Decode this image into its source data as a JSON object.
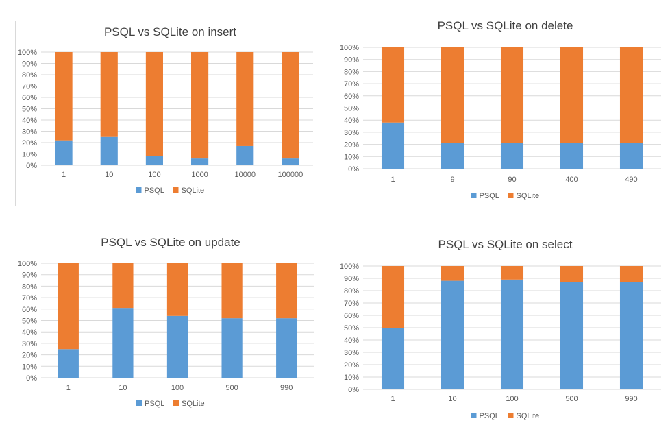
{
  "colors": {
    "psql": "#5b9bd5",
    "sqlite": "#ed7d31",
    "grid": "#d9d9d9"
  },
  "chart_data": [
    {
      "type": "bar",
      "stacked": "percent",
      "title": "PSQL vs SQLite on insert",
      "categories": [
        "1",
        "10",
        "100",
        "1000",
        "10000",
        "100000"
      ],
      "series": [
        {
          "name": "PSQL",
          "values": [
            22,
            25,
            8,
            6,
            17,
            6
          ]
        },
        {
          "name": "SQLite",
          "values": [
            78,
            75,
            92,
            94,
            83,
            94
          ]
        }
      ],
      "y_ticks": [
        "0%",
        "10%",
        "20%",
        "30%",
        "40%",
        "50%",
        "60%",
        "70%",
        "80%",
        "90%",
        "100%"
      ],
      "ylim": [
        0,
        100
      ],
      "grid": true,
      "legend": "bottom"
    },
    {
      "type": "bar",
      "stacked": "percent",
      "title": "PSQL vs SQLite on delete",
      "categories": [
        "1",
        "9",
        "90",
        "400",
        "490"
      ],
      "series": [
        {
          "name": "PSQL",
          "values": [
            38,
            21,
            21,
            21,
            21
          ]
        },
        {
          "name": "SQLite",
          "values": [
            62,
            79,
            79,
            79,
            79
          ]
        }
      ],
      "y_ticks": [
        "0%",
        "10%",
        "20%",
        "30%",
        "40%",
        "50%",
        "60%",
        "70%",
        "80%",
        "90%",
        "100%"
      ],
      "ylim": [
        0,
        100
      ],
      "grid": true,
      "legend": "bottom"
    },
    {
      "type": "bar",
      "stacked": "percent",
      "title": "PSQL vs SQLite on update",
      "categories": [
        "1",
        "10",
        "100",
        "500",
        "990"
      ],
      "series": [
        {
          "name": "PSQL",
          "values": [
            25,
            61,
            54,
            52,
            52
          ]
        },
        {
          "name": "SQLite",
          "values": [
            75,
            39,
            46,
            48,
            48
          ]
        }
      ],
      "y_ticks": [
        "0%",
        "10%",
        "20%",
        "30%",
        "40%",
        "50%",
        "60%",
        "70%",
        "80%",
        "90%",
        "100%"
      ],
      "ylim": [
        0,
        100
      ],
      "grid": true,
      "legend": "bottom"
    },
    {
      "type": "bar",
      "stacked": "percent",
      "title": "PSQL vs SQLite on select",
      "categories": [
        "1",
        "10",
        "100",
        "500",
        "990"
      ],
      "series": [
        {
          "name": "PSQL",
          "values": [
            50,
            88,
            89,
            87,
            87
          ]
        },
        {
          "name": "SQLite",
          "values": [
            50,
            12,
            11,
            13,
            13
          ]
        }
      ],
      "y_ticks": [
        "0%",
        "10%",
        "20%",
        "30%",
        "40%",
        "50%",
        "60%",
        "70%",
        "80%",
        "90%",
        "100%"
      ],
      "ylim": [
        0,
        100
      ],
      "grid": true,
      "legend": "bottom"
    }
  ]
}
